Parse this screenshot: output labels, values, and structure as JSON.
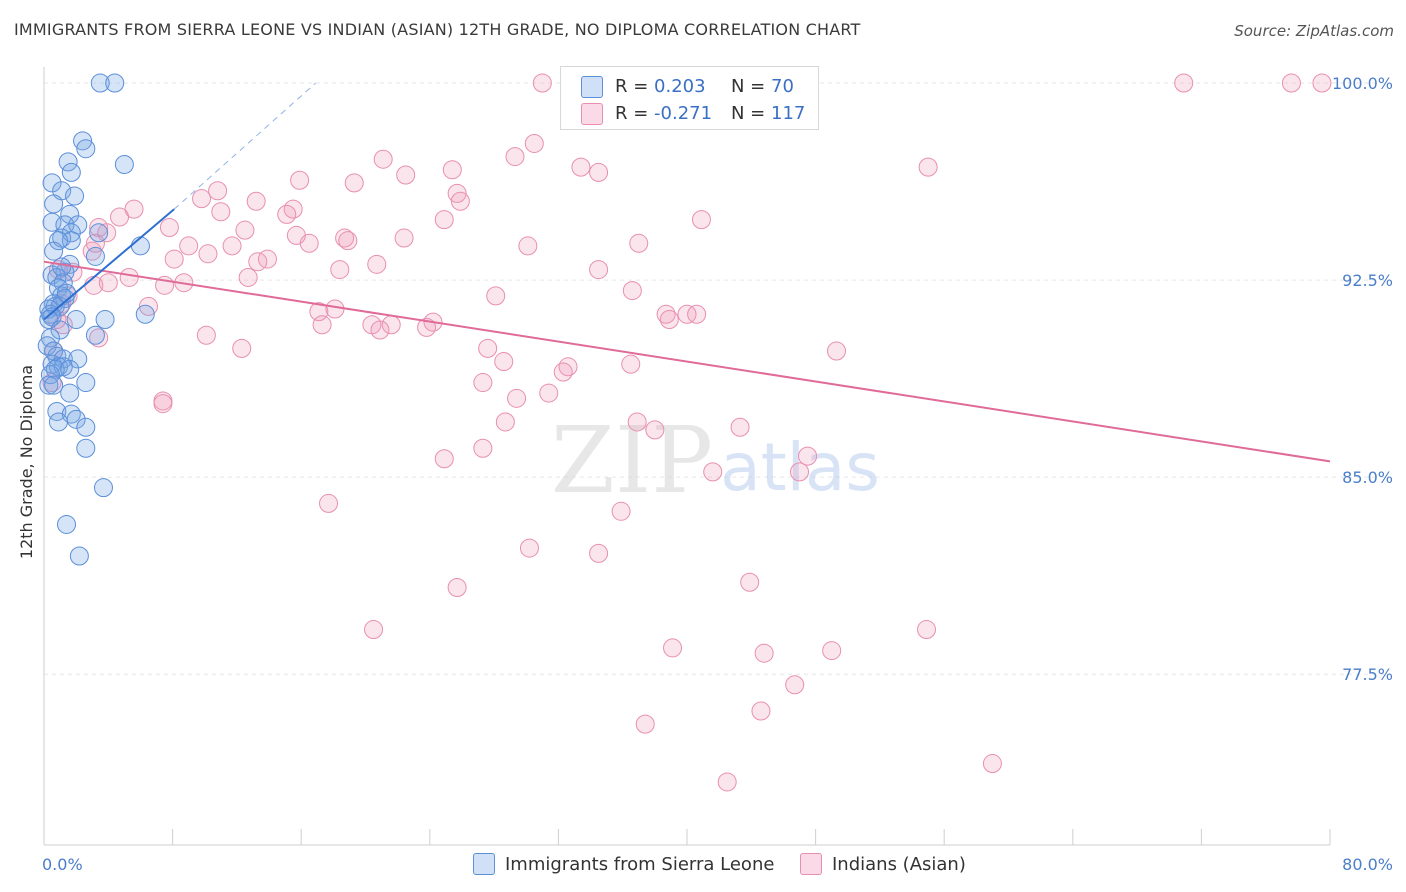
{
  "title": "IMMIGRANTS FROM SIERRA LEONE VS INDIAN (ASIAN) 12TH GRADE, NO DIPLOMA CORRELATION CHART",
  "source": "Source: ZipAtlas.com",
  "watermark": {
    "zip": "ZIP",
    "atlas": "atlas"
  },
  "colors": {
    "blue_fill": "rgba(120,165,230,0.30)",
    "blue_stroke": "#5b8fd9",
    "blue_line": "#2f6fd0",
    "pink_fill": "rgba(240,150,185,0.25)",
    "pink_stroke": "#e88fb0",
    "pink_line": "#e06a98",
    "grid": "#e6e6e6",
    "tick_text": "#4a7ec9"
  },
  "legend_top": [
    {
      "r_label": "R =",
      "r_value": "0.203",
      "n_label": "N =",
      "n_value": "70"
    },
    {
      "r_label": "R =",
      "r_value": "-0.271",
      "n_label": "N =",
      "n_value": "117"
    }
  ],
  "legend_bottom": [
    {
      "label": "Immigrants from Sierra Leone"
    },
    {
      "label": "Indians (Asian)"
    }
  ],
  "chart_data": {
    "type": "scatter",
    "title": "IMMIGRANTS FROM SIERRA LEONE VS INDIAN (ASIAN) 12TH GRADE, NO DIPLOMA CORRELATION CHART",
    "xlabel": "",
    "ylabel": "12th Grade, No Diploma",
    "xlim": [
      0,
      80
    ],
    "ylim": [
      71.0,
      100.8
    ],
    "x_tick_labels": [
      "0.0%",
      "80.0%"
    ],
    "y_ticks": [
      100.0,
      92.5,
      85.0,
      77.5
    ],
    "y_tick_labels": [
      "100.0%",
      "92.5%",
      "85.0%",
      "77.5%"
    ],
    "grid": true,
    "legend_position": "top-center",
    "series": [
      {
        "name": "Immigrants from Sierra Leone",
        "r": 0.203,
        "n": 70,
        "trend": {
          "x0": 0.0,
          "y0": 91.0,
          "x1": 8.1,
          "y1": 95.2,
          "dash_x1": 16.9,
          "dash_y1": 100.0
        },
        "points": [
          [
            3.5,
            100.0
          ],
          [
            4.4,
            100.0
          ],
          [
            2.4,
            97.8
          ],
          [
            2.6,
            97.5
          ],
          [
            1.5,
            97.0
          ],
          [
            5.0,
            96.9
          ],
          [
            1.7,
            96.6
          ],
          [
            0.5,
            96.2
          ],
          [
            1.1,
            95.9
          ],
          [
            1.9,
            95.7
          ],
          [
            0.6,
            95.4
          ],
          [
            1.6,
            95.0
          ],
          [
            0.5,
            94.7
          ],
          [
            1.3,
            94.6
          ],
          [
            2.1,
            94.6
          ],
          [
            1.7,
            94.3
          ],
          [
            3.4,
            94.3
          ],
          [
            1.1,
            94.1
          ],
          [
            1.7,
            94.0
          ],
          [
            0.9,
            94.0
          ],
          [
            6.0,
            93.8
          ],
          [
            0.6,
            93.6
          ],
          [
            3.2,
            93.4
          ],
          [
            1.6,
            93.1
          ],
          [
            1.3,
            92.8
          ],
          [
            0.5,
            92.7
          ],
          [
            0.8,
            92.6
          ],
          [
            1.2,
            92.4
          ],
          [
            0.9,
            92.2
          ],
          [
            1.1,
            91.9
          ],
          [
            1.3,
            91.8
          ],
          [
            0.6,
            91.6
          ],
          [
            0.7,
            91.5
          ],
          [
            1.0,
            91.5
          ],
          [
            0.3,
            91.4
          ],
          [
            0.4,
            91.2
          ],
          [
            0.5,
            91.1
          ],
          [
            0.3,
            91.0
          ],
          [
            2.0,
            91.0
          ],
          [
            3.8,
            91.0
          ],
          [
            6.3,
            91.2
          ],
          [
            1.0,
            90.6
          ],
          [
            3.2,
            90.4
          ],
          [
            0.4,
            90.3
          ],
          [
            0.2,
            90.0
          ],
          [
            0.6,
            89.8
          ],
          [
            0.8,
            89.6
          ],
          [
            1.2,
            89.5
          ],
          [
            2.1,
            89.5
          ],
          [
            0.5,
            89.3
          ],
          [
            0.9,
            89.2
          ],
          [
            1.2,
            89.2
          ],
          [
            0.7,
            89.1
          ],
          [
            1.6,
            89.1
          ],
          [
            0.4,
            88.9
          ],
          [
            0.3,
            88.5
          ],
          [
            2.6,
            88.6
          ],
          [
            1.6,
            88.2
          ],
          [
            0.8,
            87.5
          ],
          [
            1.7,
            87.4
          ],
          [
            2.0,
            87.2
          ],
          [
            0.9,
            87.1
          ],
          [
            2.6,
            86.9
          ],
          [
            2.6,
            86.1
          ],
          [
            3.7,
            84.6
          ],
          [
            1.4,
            83.2
          ],
          [
            2.2,
            82.0
          ],
          [
            0.6,
            88.5
          ],
          [
            1.4,
            92.0
          ],
          [
            1.1,
            93.0
          ]
        ]
      },
      {
        "name": "Indians (Asian)",
        "r": -0.271,
        "n": 117,
        "trend": {
          "x0": 0.0,
          "y0": 93.2,
          "x1": 80.0,
          "y1": 85.6
        },
        "points": [
          [
            31.0,
            100.0
          ],
          [
            46.7,
            100.0
          ],
          [
            70.9,
            100.0
          ],
          [
            77.6,
            100.0
          ],
          [
            79.5,
            100.0
          ],
          [
            30.5,
            97.7
          ],
          [
            29.3,
            97.2
          ],
          [
            21.1,
            97.1
          ],
          [
            33.4,
            96.8
          ],
          [
            25.4,
            96.7
          ],
          [
            22.5,
            96.5
          ],
          [
            34.5,
            96.6
          ],
          [
            55.0,
            96.8
          ],
          [
            15.9,
            96.3
          ],
          [
            19.3,
            96.2
          ],
          [
            10.8,
            95.9
          ],
          [
            25.7,
            95.8
          ],
          [
            9.8,
            95.6
          ],
          [
            13.2,
            95.5
          ],
          [
            25.9,
            95.5
          ],
          [
            11.0,
            95.1
          ],
          [
            15.5,
            95.2
          ],
          [
            5.6,
            95.2
          ],
          [
            15.1,
            95.0
          ],
          [
            4.7,
            94.9
          ],
          [
            24.9,
            94.8
          ],
          [
            40.9,
            94.8
          ],
          [
            7.8,
            94.5
          ],
          [
            3.4,
            94.5
          ],
          [
            12.5,
            94.4
          ],
          [
            3.9,
            94.3
          ],
          [
            15.7,
            94.2
          ],
          [
            16.5,
            93.9
          ],
          [
            18.7,
            94.1
          ],
          [
            18.9,
            94.0
          ],
          [
            22.4,
            94.1
          ],
          [
            11.7,
            93.8
          ],
          [
            30.1,
            93.8
          ],
          [
            37.0,
            93.9
          ],
          [
            3.0,
            93.6
          ],
          [
            9.0,
            93.8
          ],
          [
            10.2,
            93.5
          ],
          [
            13.9,
            93.3
          ],
          [
            13.3,
            93.2
          ],
          [
            20.7,
            93.1
          ],
          [
            8.1,
            93.3
          ],
          [
            34.5,
            92.9
          ],
          [
            18.4,
            92.9
          ],
          [
            5.3,
            92.6
          ],
          [
            12.7,
            92.6
          ],
          [
            1.8,
            92.8
          ],
          [
            3.1,
            92.3
          ],
          [
            4.0,
            92.4
          ],
          [
            7.5,
            92.3
          ],
          [
            8.7,
            92.4
          ],
          [
            28.1,
            91.9
          ],
          [
            36.6,
            92.1
          ],
          [
            1.1,
            91.6
          ],
          [
            6.5,
            91.5
          ],
          [
            17.1,
            91.3
          ],
          [
            18.1,
            91.4
          ],
          [
            0.8,
            91.0
          ],
          [
            1.2,
            90.8
          ],
          [
            17.3,
            90.8
          ],
          [
            20.4,
            90.8
          ],
          [
            21.6,
            90.8
          ],
          [
            24.2,
            90.9
          ],
          [
            23.8,
            90.7
          ],
          [
            20.9,
            90.6
          ],
          [
            38.7,
            91.2
          ],
          [
            38.9,
            91.0
          ],
          [
            40.0,
            91.2
          ],
          [
            40.6,
            91.2
          ],
          [
            10.1,
            90.4
          ],
          [
            3.4,
            90.3
          ],
          [
            12.3,
            89.9
          ],
          [
            27.6,
            89.9
          ],
          [
            0.6,
            89.8
          ],
          [
            28.6,
            89.4
          ],
          [
            49.3,
            89.8
          ],
          [
            36.5,
            89.3
          ],
          [
            32.6,
            89.2
          ],
          [
            32.3,
            89.0
          ],
          [
            0.5,
            88.6
          ],
          [
            27.3,
            88.6
          ],
          [
            31.4,
            88.2
          ],
          [
            29.4,
            88.0
          ],
          [
            7.4,
            87.9
          ],
          [
            7.4,
            87.8
          ],
          [
            36.9,
            87.1
          ],
          [
            28.7,
            87.1
          ],
          [
            38.0,
            86.8
          ],
          [
            43.3,
            86.9
          ],
          [
            27.3,
            86.1
          ],
          [
            24.9,
            85.7
          ],
          [
            47.5,
            85.8
          ],
          [
            41.6,
            85.2
          ],
          [
            47.0,
            85.2
          ],
          [
            17.7,
            84.0
          ],
          [
            35.9,
            83.7
          ],
          [
            30.2,
            82.3
          ],
          [
            34.5,
            82.1
          ],
          [
            25.7,
            80.8
          ],
          [
            43.9,
            81.0
          ],
          [
            20.5,
            79.2
          ],
          [
            54.9,
            79.2
          ],
          [
            39.1,
            78.5
          ],
          [
            44.8,
            78.3
          ],
          [
            49.0,
            78.4
          ],
          [
            46.7,
            77.1
          ],
          [
            44.6,
            76.1
          ],
          [
            37.4,
            75.6
          ],
          [
            59.0,
            74.1
          ],
          [
            42.5,
            73.4
          ],
          [
            1.5,
            91.9
          ],
          [
            0.9,
            92.9
          ],
          [
            3.2,
            93.9
          ]
        ]
      }
    ]
  }
}
